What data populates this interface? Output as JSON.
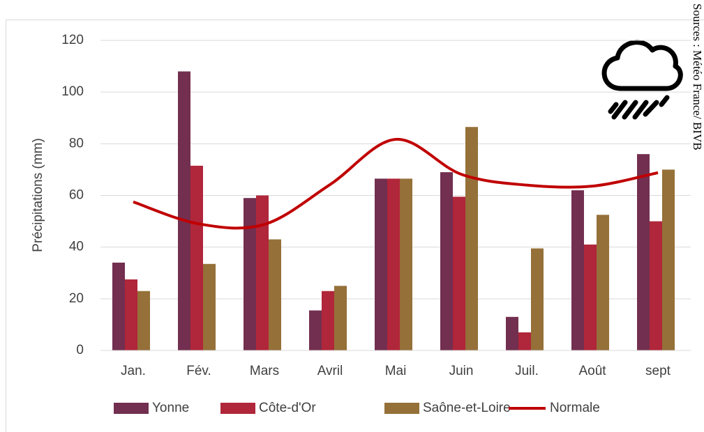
{
  "chart_data": {
    "type": "bar",
    "y_label": "Précipitations (mm)",
    "source": "Sources : Météo France/ BIVB",
    "categories": [
      "Jan.",
      "Fév.",
      "Mars",
      "Avril",
      "Mai",
      "Juin",
      "Juil.",
      "Août",
      "sept"
    ],
    "series": [
      {
        "name": "Yonne",
        "color": "#722f4f",
        "values": [
          34,
          108,
          59,
          15.5,
          66.5,
          69,
          13,
          62,
          76
        ]
      },
      {
        "name": "Côte-d'Or",
        "color": "#b0263a",
        "values": [
          27.5,
          71.5,
          60,
          23,
          66.5,
          59.5,
          7,
          41,
          50
        ]
      },
      {
        "name": "Saône-et-Loire",
        "color": "#957038",
        "values": [
          23,
          33.5,
          43,
          25,
          66.5,
          86.5,
          39.5,
          52.5,
          70
        ]
      },
      {
        "name": "Normale",
        "color": "#c00000",
        "type": "line",
        "smooth": true,
        "values": [
          57.5,
          49,
          48.8,
          64.2,
          81.7,
          68.2,
          64,
          63.6,
          68.8
        ]
      }
    ],
    "ylim": [
      0,
      120
    ],
    "yticks": [
      0,
      20,
      40,
      60,
      80,
      100,
      120
    ],
    "grid": true,
    "legend": "bottom"
  }
}
